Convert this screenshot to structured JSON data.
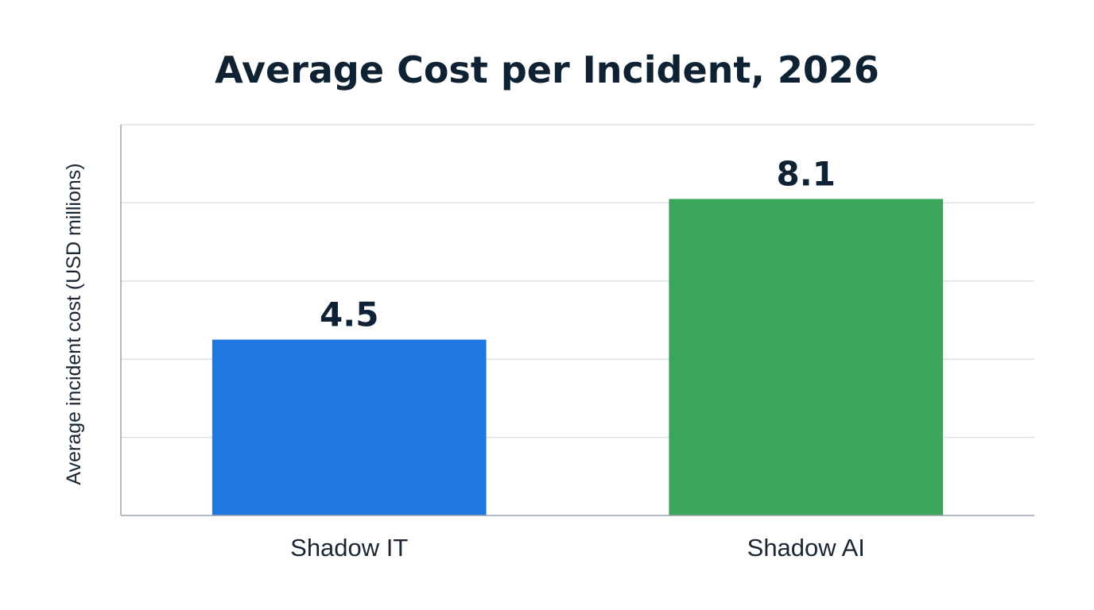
{
  "chart_data": {
    "type": "bar",
    "title": "Average Cost per Incident, 2026",
    "xlabel": "",
    "ylabel": "Average incident cost (USD millions)",
    "categories": [
      "Shadow IT",
      "Shadow AI"
    ],
    "values": [
      4.5,
      8.1
    ],
    "data_labels": [
      "4.5",
      "8.1"
    ],
    "colors": [
      "#1f77e0",
      "#3ba65a"
    ],
    "ylim": [
      0,
      10
    ],
    "grid": true,
    "legend": "none"
  }
}
